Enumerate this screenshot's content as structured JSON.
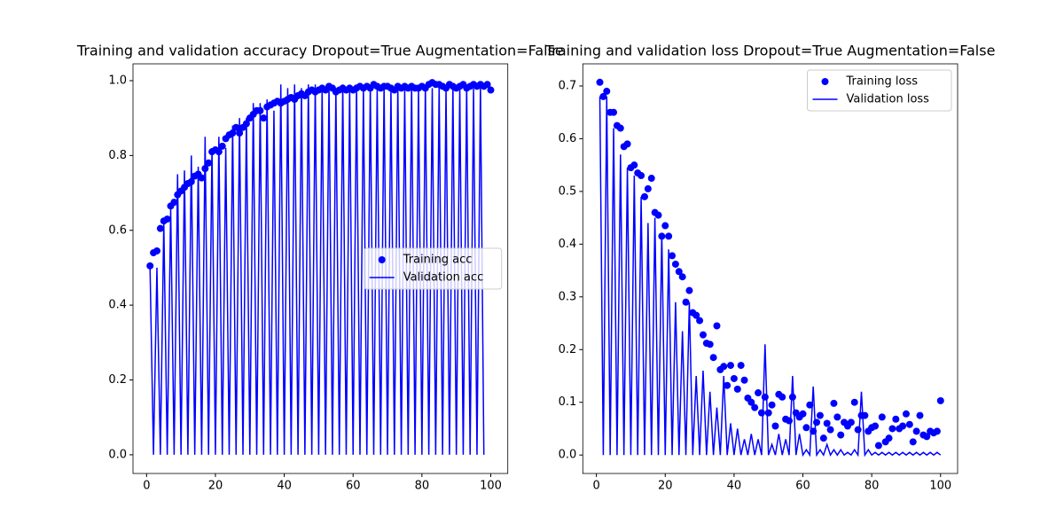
{
  "chart_data": [
    {
      "type": "scatter-line",
      "title": "Training and validation accuracy Dropout=True Augmentation=False",
      "x": [
        1,
        2,
        3,
        4,
        5,
        6,
        7,
        8,
        9,
        10,
        11,
        12,
        13,
        14,
        15,
        16,
        17,
        18,
        19,
        20,
        21,
        22,
        23,
        24,
        25,
        26,
        27,
        28,
        29,
        30,
        31,
        32,
        33,
        34,
        35,
        36,
        37,
        38,
        39,
        40,
        41,
        42,
        43,
        44,
        45,
        46,
        47,
        48,
        49,
        50,
        51,
        52,
        53,
        54,
        55,
        56,
        57,
        58,
        59,
        60,
        61,
        62,
        63,
        64,
        65,
        66,
        67,
        68,
        69,
        70,
        71,
        72,
        73,
        74,
        75,
        76,
        77,
        78,
        79,
        80,
        81,
        82,
        83,
        84,
        85,
        86,
        87,
        88,
        89,
        90,
        91,
        92,
        93,
        94,
        95,
        96,
        97,
        98,
        99,
        100
      ],
      "series": [
        {
          "name": "Training acc",
          "color": "#0000ff",
          "mode": "markers",
          "values": [
            0.505,
            0.54,
            0.545,
            0.605,
            0.625,
            0.63,
            0.665,
            0.675,
            0.695,
            0.705,
            0.715,
            0.725,
            0.73,
            0.745,
            0.75,
            0.74,
            0.765,
            0.78,
            0.81,
            0.815,
            0.81,
            0.825,
            0.845,
            0.855,
            0.86,
            0.875,
            0.86,
            0.875,
            0.885,
            0.9,
            0.91,
            0.92,
            0.92,
            0.9,
            0.93,
            0.935,
            0.94,
            0.945,
            0.94,
            0.945,
            0.95,
            0.955,
            0.95,
            0.96,
            0.965,
            0.96,
            0.97,
            0.975,
            0.97,
            0.975,
            0.98,
            0.975,
            0.985,
            0.98,
            0.97,
            0.975,
            0.98,
            0.975,
            0.98,
            0.975,
            0.98,
            0.985,
            0.98,
            0.985,
            0.98,
            0.99,
            0.985,
            0.98,
            0.985,
            0.985,
            0.98,
            0.975,
            0.985,
            0.98,
            0.985,
            0.98,
            0.985,
            0.98,
            0.98,
            0.985,
            0.98,
            0.99,
            0.995,
            0.99,
            0.99,
            0.985,
            0.98,
            0.99,
            0.985,
            0.98,
            0.985,
            0.99,
            0.98,
            0.985,
            0.99,
            0.985,
            0.99,
            0.985,
            0.99,
            0.975
          ]
        },
        {
          "name": "Validation acc",
          "color": "#0000ff",
          "mode": "lines",
          "values": [
            0.5,
            0,
            0.5,
            0,
            0.62,
            0,
            0.66,
            0,
            0.75,
            0,
            0.76,
            0,
            0.8,
            0,
            0.77,
            0,
            0.85,
            0,
            0.82,
            0,
            0.85,
            0,
            0.82,
            0,
            0.88,
            0,
            0.9,
            0,
            0.9,
            0,
            0.94,
            0,
            0.94,
            0,
            0.95,
            0,
            0.92,
            0,
            0.99,
            0,
            0.98,
            0,
            0.99,
            0,
            0.98,
            0,
            0.99,
            0,
            0.99,
            0,
            0.98,
            0,
            0.99,
            0,
            0.98,
            0,
            0.99,
            0,
            0.98,
            0,
            0.99,
            0,
            0.98,
            0,
            0.99,
            0,
            0.98,
            0,
            0.99,
            0,
            0.98,
            0,
            0.99,
            0,
            0.98,
            0,
            0.99,
            0,
            0.98,
            0,
            0.99,
            0,
            0.98,
            0,
            0.99,
            0,
            0.98,
            0,
            0.99,
            0,
            0.98,
            0,
            0.99,
            0,
            0.98,
            0,
            0.99,
            0
          ]
        }
      ],
      "xlim": [
        -3.95,
        104.95
      ],
      "xticks": [
        0,
        20,
        40,
        60,
        80,
        100
      ],
      "ylim": [
        -0.05,
        1.045
      ],
      "yticks": [
        {
          "value": 0,
          "label": "0.0"
        },
        0.2,
        0.4,
        0.6,
        0.8,
        {
          "value": 1,
          "label": "1.0"
        }
      ],
      "legend": "center right"
    },
    {
      "type": "scatter-line",
      "title": "Training and validation loss Dropout=True Augmentation=False",
      "x": [
        1,
        2,
        3,
        4,
        5,
        6,
        7,
        8,
        9,
        10,
        11,
        12,
        13,
        14,
        15,
        16,
        17,
        18,
        19,
        20,
        21,
        22,
        23,
        24,
        25,
        26,
        27,
        28,
        29,
        30,
        31,
        32,
        33,
        34,
        35,
        36,
        37,
        38,
        39,
        40,
        41,
        42,
        43,
        44,
        45,
        46,
        47,
        48,
        49,
        50,
        51,
        52,
        53,
        54,
        55,
        56,
        57,
        58,
        59,
        60,
        61,
        62,
        63,
        64,
        65,
        66,
        67,
        68,
        69,
        70,
        71,
        72,
        73,
        74,
        75,
        76,
        77,
        78,
        79,
        80,
        81,
        82,
        83,
        84,
        85,
        86,
        87,
        88,
        89,
        90,
        91,
        92,
        93,
        94,
        95,
        96,
        97,
        98,
        99,
        100
      ],
      "series": [
        {
          "name": "Training loss",
          "color": "#0000ff",
          "mode": "markers",
          "values": [
            0.707,
            0.68,
            0.69,
            0.65,
            0.65,
            0.625,
            0.62,
            0.585,
            0.59,
            0.545,
            0.55,
            0.535,
            0.53,
            0.49,
            0.505,
            0.525,
            0.46,
            0.455,
            0.415,
            0.435,
            0.415,
            0.378,
            0.362,
            0.348,
            0.338,
            0.29,
            0.312,
            0.27,
            0.265,
            0.255,
            0.228,
            0.212,
            0.21,
            0.185,
            0.245,
            0.162,
            0.168,
            0.132,
            0.17,
            0.145,
            0.125,
            0.17,
            0.142,
            0.108,
            0.1,
            0.09,
            0.118,
            0.08,
            0.11,
            0.08,
            0.095,
            0.055,
            0.115,
            0.11,
            0.068,
            0.065,
            0.11,
            0.08,
            0.072,
            0.078,
            0.052,
            0.095,
            0.045,
            0.062,
            0.075,
            0.032,
            0.06,
            0.048,
            0.098,
            0.072,
            0.038,
            0.062,
            0.055,
            0.062,
            0.1,
            0.048,
            0.075,
            0.075,
            0.045,
            0.052,
            0.055,
            0.018,
            0.072,
            0.025,
            0.032,
            0.05,
            0.068,
            0.05,
            0.055,
            0.078,
            0.058,
            0.025,
            0.045,
            0.075,
            0.038,
            0.035,
            0.045,
            0.042,
            0.045,
            0.103
          ]
        },
        {
          "name": "Validation loss",
          "color": "#0000ff",
          "mode": "lines",
          "values": [
            0.68,
            0,
            0.68,
            0,
            0.62,
            0,
            0.57,
            0,
            0.545,
            0,
            0.53,
            0,
            0.49,
            0,
            0.44,
            0,
            0.45,
            0,
            0.42,
            0,
            0.39,
            0,
            0.29,
            0,
            0.235,
            0,
            0.29,
            0,
            0.15,
            0,
            0.16,
            0,
            0.12,
            0,
            0.09,
            0,
            0.15,
            0,
            0.06,
            0,
            0.05,
            0,
            0.03,
            0,
            0.04,
            0,
            0.03,
            0,
            0.21,
            0,
            0.02,
            0,
            0.04,
            0,
            0.03,
            0,
            0.15,
            0,
            0.04,
            0,
            0.01,
            0,
            0.13,
            0,
            0.01,
            0,
            0.02,
            0,
            0.01,
            0,
            0.01,
            0,
            0.005,
            0,
            0.01,
            0,
            0.12,
            0,
            0.01,
            0,
            0.005,
            0,
            0.005,
            0,
            0.005,
            0,
            0.005,
            0,
            0.005,
            0,
            0.005,
            0,
            0.005,
            0,
            0.005,
            0,
            0.005,
            0,
            0.005,
            0
          ]
        }
      ],
      "xlim": [
        -3.95,
        104.95
      ],
      "xticks": [
        0,
        20,
        40,
        60,
        80,
        100
      ],
      "ylim": [
        -0.035,
        0.742
      ],
      "yticks": [
        {
          "value": 0,
          "label": "0.0"
        },
        0.1,
        0.2,
        0.3,
        0.4,
        0.5,
        0.6,
        0.7
      ],
      "legend": "upper right"
    }
  ]
}
